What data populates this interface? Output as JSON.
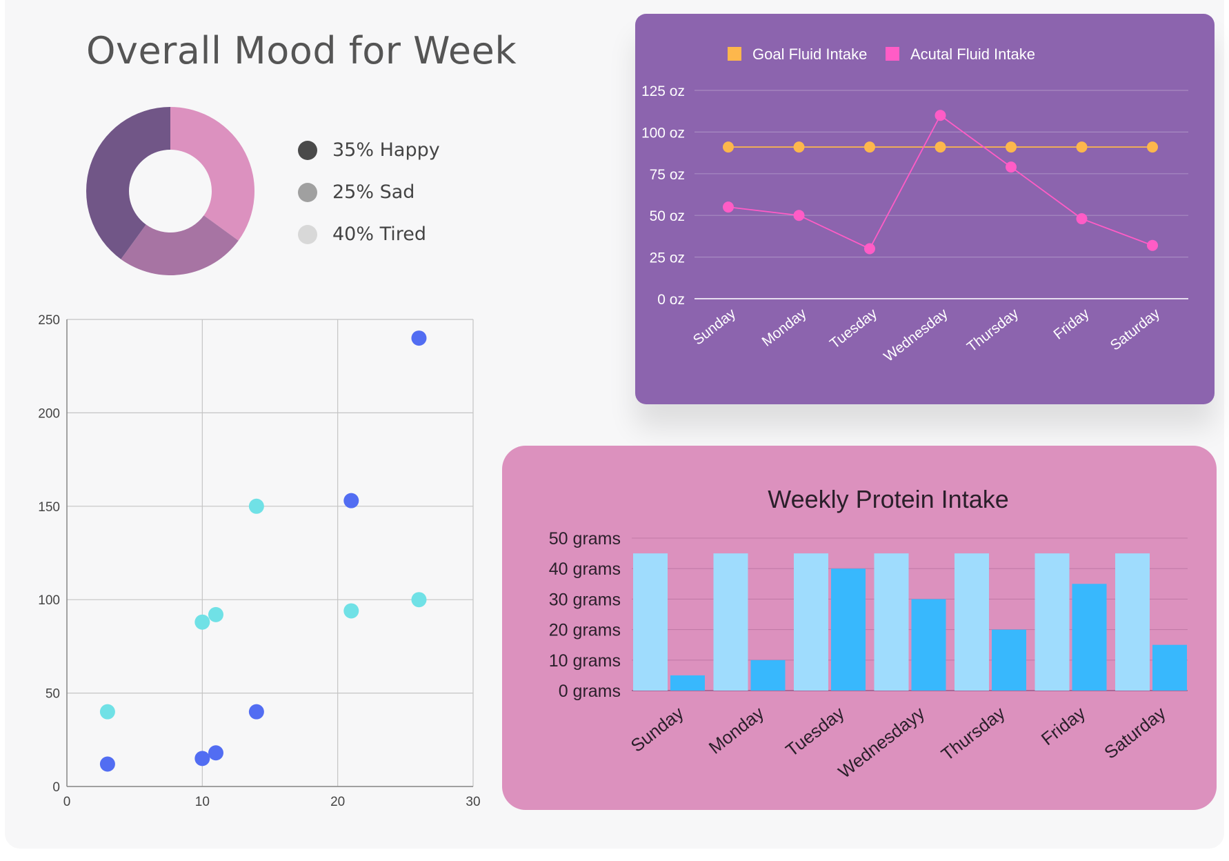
{
  "mood": {
    "title": "Overall Mood for Week",
    "chart_type": "donut",
    "legend": [
      {
        "label": "35% Happy",
        "dot_color": "#4a4a4a"
      },
      {
        "label": "25% Sad",
        "dot_color": "#a0a0a0"
      },
      {
        "label": "40% Tired",
        "dot_color": "#d8d8d8"
      }
    ],
    "slices": [
      {
        "value": 35,
        "color": "#dc91bf"
      },
      {
        "value": 25,
        "color": "#a774a3"
      },
      {
        "value": 40,
        "color": "#715687"
      }
    ]
  },
  "chart_data": [
    {
      "type": "scatter",
      "title": "",
      "xlim": [
        0,
        30
      ],
      "ylim": [
        0,
        250
      ],
      "x_ticks": [
        0,
        10,
        20,
        30
      ],
      "y_ticks": [
        0,
        50,
        100,
        150,
        200,
        250
      ],
      "grid": true,
      "series": [
        {
          "color": "#70e1e6",
          "points": [
            [
              3,
              40
            ],
            [
              10,
              88
            ],
            [
              11,
              92
            ],
            [
              14,
              150
            ],
            [
              21,
              94
            ],
            [
              26,
              100
            ]
          ]
        },
        {
          "color": "#526df2",
          "points": [
            [
              3,
              12
            ],
            [
              10,
              15
            ],
            [
              11,
              18
            ],
            [
              14,
              40
            ],
            [
              21,
              153
            ],
            [
              26,
              240
            ]
          ]
        }
      ]
    },
    {
      "type": "line",
      "title": "",
      "categories": [
        "Sunday",
        "Monday",
        "Tuesday",
        "Wednesday",
        "Thursday",
        "Friday",
        "Saturday"
      ],
      "y_ticks": [
        "0 oz",
        "25 oz",
        "50 oz",
        "75 oz",
        "100 oz",
        "125 oz"
      ],
      "ylim": [
        0,
        125
      ],
      "grid": true,
      "legend_position": "top",
      "series": [
        {
          "name": "Goal Fluid Intake",
          "color": "#fdb74c",
          "values": [
            91,
            91,
            91,
            91,
            91,
            91,
            91
          ]
        },
        {
          "name": "Acutal Fluid Intake",
          "color": "#ff5cc6",
          "values": [
            55,
            50,
            30,
            110,
            79,
            48,
            32
          ]
        }
      ]
    },
    {
      "type": "bar",
      "title": "Weekly Protein Intake",
      "categories": [
        "Sunday",
        "Monday",
        "Tuesday",
        "Wednesdayy",
        "Thursday",
        "Friday",
        "Saturday"
      ],
      "y_ticks": [
        "0 grams",
        "10 grams",
        "20 grams",
        "30 grams",
        "40 grams",
        "50 grams"
      ],
      "ylim": [
        0,
        50
      ],
      "grid": true,
      "series": [
        {
          "color": "#9fdcfd",
          "values": [
            45,
            45,
            45,
            45,
            45,
            45,
            45
          ]
        },
        {
          "color": "#38b8fd",
          "values": [
            5,
            10,
            40,
            30,
            20,
            35,
            15
          ]
        }
      ]
    }
  ]
}
